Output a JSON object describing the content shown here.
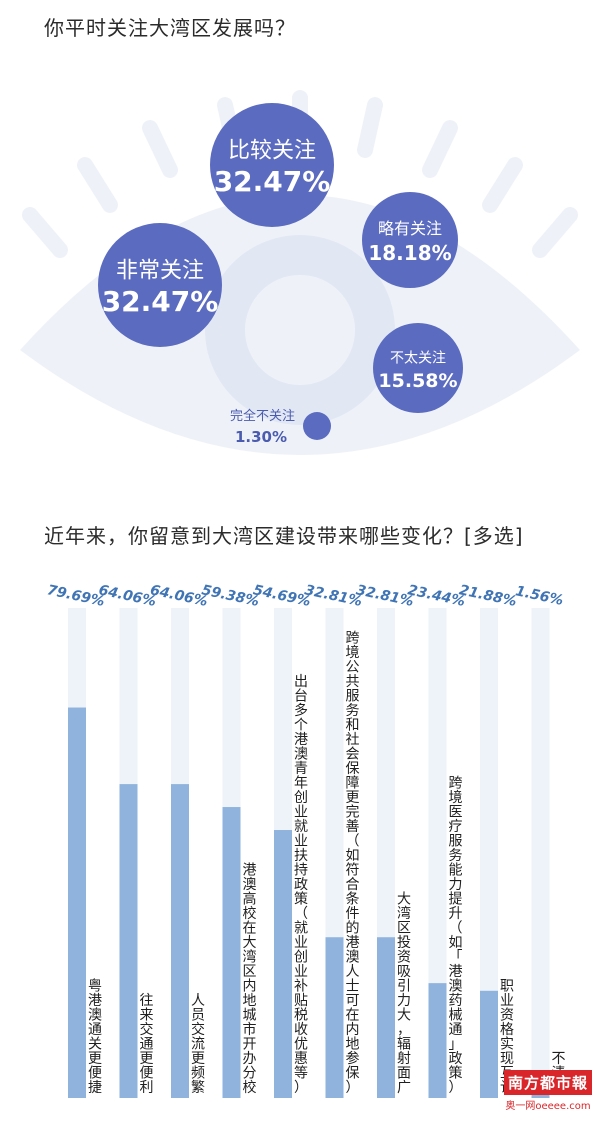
{
  "question1": {
    "title": "你平时关注大湾区发展吗？"
  },
  "question2": {
    "title": "近年来，你留意到大湾区建设带来哪些变化？[多选]"
  },
  "chart_data": [
    {
      "type": "bubble",
      "title": "你平时关注大湾区发展吗？",
      "categories": [
        "比较关注",
        "非常关注",
        "略有关注",
        "不太关注",
        "完全不关注"
      ],
      "values": [
        32.47,
        32.47,
        18.18,
        15.58,
        1.3
      ],
      "value_labels": [
        "32.47%",
        "32.47%",
        "18.18%",
        "15.58%",
        "1.30%"
      ],
      "color": "#5b6bc0"
    },
    {
      "type": "bar",
      "title": "近年来，你留意到大湾区建设带来哪些变化？[多选]",
      "orientation": "vertical",
      "categories": [
        "粤港澳通关更便捷",
        "往来交通更便利",
        "人员交流更频繁",
        "港澳高校在大湾区内地城市开办分校",
        "出台多个港澳青年创业就业扶持政策（就业创业补贴税收优惠等）",
        "跨境公共服务和社会保障更完善（如符合条件的港澳人士可在内地参保）",
        "大湾区投资吸引力大，辐射面广",
        "跨境医疗服务能力提升（如「港澳药械通」政策）",
        "职业资格实现互认",
        "不清楚"
      ],
      "values": [
        79.69,
        64.06,
        64.06,
        59.38,
        54.69,
        32.81,
        32.81,
        23.44,
        21.88,
        1.56
      ],
      "value_labels": [
        "79.69%",
        "64.06%",
        "64.06%",
        "59.38%",
        "54.69%",
        "32.81%",
        "32.81%",
        "23.44%",
        "21.88%",
        "1.56%"
      ],
      "ylim": [
        0,
        100
      ],
      "bar_color": "#8fb3dc",
      "track_color": "#eef3fa"
    }
  ],
  "logo": {
    "main": "南方都市報",
    "sub": "奥一网oeeee.com"
  }
}
